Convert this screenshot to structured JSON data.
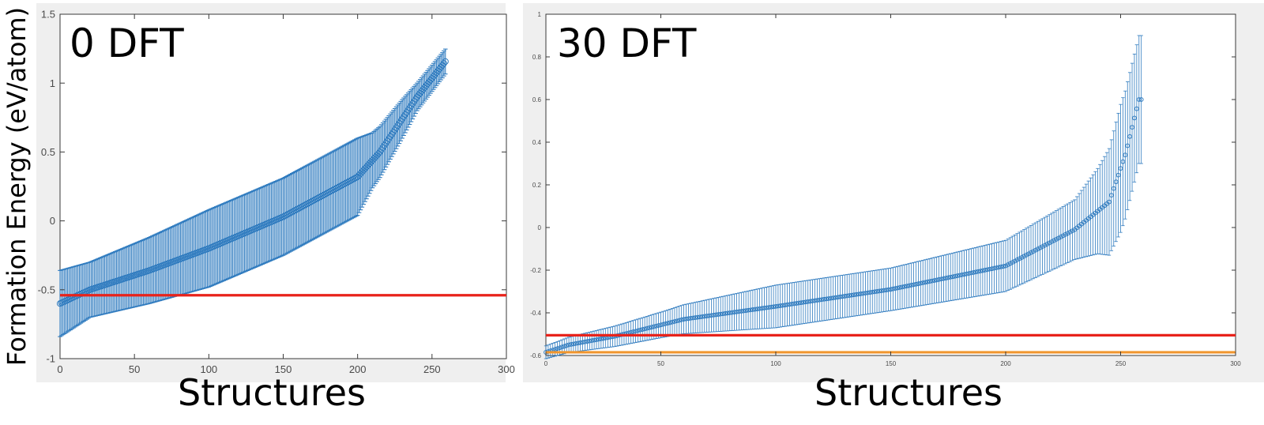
{
  "ylabel": "Formation Energy (eV/atom)",
  "chart_data": [
    {
      "type": "scatter",
      "title": "0 DFT",
      "xlabel": "Structures",
      "ylabel": "Formation Energy (eV/atom)",
      "xlim": [
        0,
        300
      ],
      "ylim": [
        -1,
        1.5
      ],
      "xticks": [
        0,
        50,
        100,
        150,
        200,
        250,
        300
      ],
      "yticks": [
        -1,
        -0.5,
        0,
        0.5,
        1,
        1.5
      ],
      "ytick_labels": [
        "-1",
        "-0.5",
        "0",
        "0.5",
        "1",
        "1.5"
      ],
      "n_points": 260,
      "curve": {
        "x": [
          0,
          20,
          60,
          100,
          150,
          200,
          215,
          240,
          260
        ],
        "y": [
          -0.6,
          -0.5,
          -0.36,
          -0.2,
          0.03,
          0.32,
          0.5,
          0.9,
          1.17
        ]
      },
      "error_halfwidth": {
        "x": [
          0,
          20,
          40,
          100,
          200,
          210,
          230,
          240,
          260
        ],
        "e": [
          0.24,
          0.2,
          0.22,
          0.28,
          0.28,
          0.2,
          0.14,
          0.1,
          0.09
        ]
      },
      "series": [
        {
          "color": "#2f7bbf",
          "marker": "circle",
          "errorbars": true
        }
      ],
      "reference_lines": [
        {
          "y": -0.54,
          "color": "#e8231b"
        }
      ],
      "grid": false
    },
    {
      "type": "scatter",
      "title": "30 DFT",
      "xlabel": "Structures",
      "xlim": [
        0,
        300
      ],
      "ylim": [
        -0.6,
        1
      ],
      "xticks": [
        0,
        50,
        100,
        150,
        200,
        250,
        300
      ],
      "yticks": [
        -0.6,
        -0.4,
        -0.2,
        0,
        0.2,
        0.4,
        0.6,
        0.8,
        1
      ],
      "ytick_labels": [
        "-0.6",
        "-0.4",
        "-0.2",
        "0",
        "0.2",
        "0.4",
        "0.6",
        "0.8",
        "1"
      ],
      "n_points": 260,
      "curve": {
        "x": [
          0,
          10,
          30,
          60,
          100,
          150,
          200,
          230,
          245,
          252,
          258
        ],
        "y": [
          -0.585,
          -0.55,
          -0.51,
          -0.43,
          -0.37,
          -0.29,
          -0.18,
          -0.01,
          0.12,
          0.34,
          0.6
        ]
      },
      "error_halfwidth": {
        "x": [
          0,
          50,
          100,
          150,
          200,
          230,
          240,
          250,
          258
        ],
        "e": [
          0.03,
          0.06,
          0.1,
          0.1,
          0.12,
          0.14,
          0.2,
          0.3,
          0.3
        ]
      },
      "series": [
        {
          "color": "#2f7bbf",
          "marker": "circle",
          "errorbars": true
        }
      ],
      "reference_lines": [
        {
          "y": -0.505,
          "color": "#e8231b"
        },
        {
          "y": -0.585,
          "color": "#f0962f"
        }
      ],
      "grid": false
    }
  ]
}
